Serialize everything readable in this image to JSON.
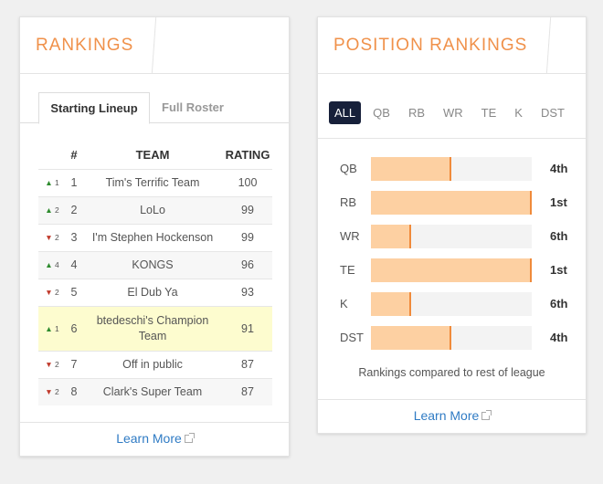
{
  "rankings": {
    "title": "RANKINGS",
    "tabs": [
      {
        "label": "Starting Lineup",
        "active": true
      },
      {
        "label": "Full Roster",
        "active": false
      }
    ],
    "columns": {
      "num": "#",
      "team": "TEAM",
      "rating": "RATING"
    },
    "rows": [
      {
        "dir": "up",
        "change": "1",
        "rank": "1",
        "team": "Tim's Terrific Team",
        "rating": "100"
      },
      {
        "dir": "up",
        "change": "2",
        "rank": "2",
        "team": "LoLo",
        "rating": "99"
      },
      {
        "dir": "down",
        "change": "2",
        "rank": "3",
        "team": "I'm Stephen Hockenson",
        "rating": "99"
      },
      {
        "dir": "up",
        "change": "4",
        "rank": "4",
        "team": "KONGS",
        "rating": "96"
      },
      {
        "dir": "down",
        "change": "2",
        "rank": "5",
        "team": "El Dub Ya",
        "rating": "93"
      },
      {
        "dir": "up",
        "change": "1",
        "rank": "6",
        "team": "btedeschi's Champion Team",
        "rating": "91"
      },
      {
        "dir": "down",
        "change": "2",
        "rank": "7",
        "team": "Off in public",
        "rating": "87"
      },
      {
        "dir": "down",
        "change": "2",
        "rank": "8",
        "team": "Clark's Super Team",
        "rating": "87"
      }
    ],
    "learn_more": "Learn More"
  },
  "position_rankings": {
    "title": "POSITION RANKINGS",
    "tabs": [
      "ALL",
      "QB",
      "RB",
      "WR",
      "TE",
      "K",
      "DST"
    ],
    "active_tab": "ALL",
    "bars": [
      {
        "position": "QB",
        "rank": "4th",
        "fill": 0.5
      },
      {
        "position": "RB",
        "rank": "1st",
        "fill": 1.0
      },
      {
        "position": "WR",
        "rank": "6th",
        "fill": 0.25
      },
      {
        "position": "TE",
        "rank": "1st",
        "fill": 1.0
      },
      {
        "position": "K",
        "rank": "6th",
        "fill": 0.25
      },
      {
        "position": "DST",
        "rank": "4th",
        "fill": 0.5
      }
    ],
    "caption": "Rankings compared to rest of league",
    "learn_more": "Learn More"
  },
  "colors": {
    "accent": "#f0914a",
    "link": "#2f7bc4",
    "bar_fill": "#fdd0a2",
    "bar_edge": "#f08a3a",
    "up": "#2e8b2e",
    "down": "#c0392b",
    "highlight": "#fdfccf"
  }
}
